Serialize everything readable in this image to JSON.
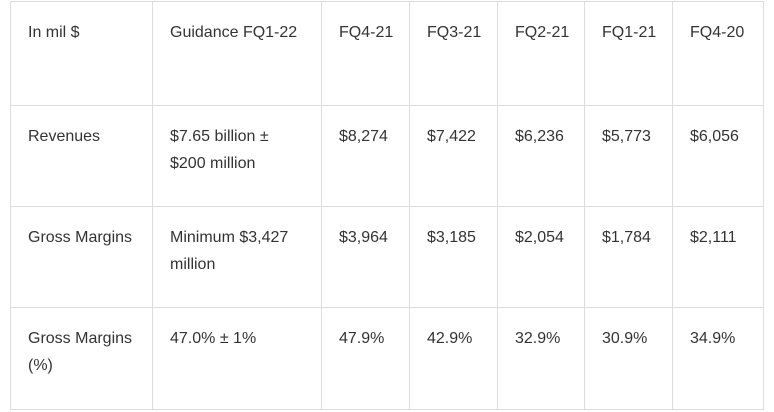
{
  "table": {
    "headers": [
      "In mil $",
      "Guidance FQ1-22",
      "FQ4-21",
      "FQ3-21",
      "FQ2-21",
      "FQ1-21",
      "FQ4-20"
    ],
    "rows": [
      {
        "label": "Revenues",
        "guidance": "$7.65 billion ± $200 million",
        "values": [
          "$8,274",
          "$7,422",
          "$6,236",
          "$5,773",
          "$6,056"
        ]
      },
      {
        "label": "Gross Margins",
        "guidance": "Minimum $3,427 million",
        "values": [
          "$3,964",
          "$3,185",
          "$2,054",
          "$1,784",
          "$2,111"
        ]
      },
      {
        "label": "Gross Margins (%)",
        "guidance": "47.0% ± 1%",
        "values": [
          "47.9%",
          "42.9%",
          "32.9%",
          "30.9%",
          "34.9%"
        ]
      }
    ]
  }
}
